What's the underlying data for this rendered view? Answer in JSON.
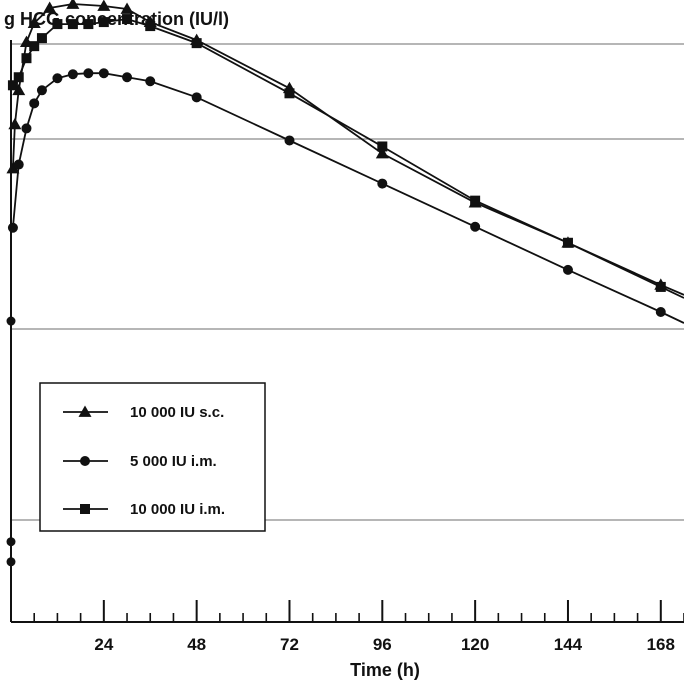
{
  "chart_data": {
    "type": "line",
    "title": "g HCG concentration (IU/l)",
    "xlabel": "Time (h)",
    "ylabel": "",
    "x_ticks": [
      "24",
      "48",
      "72",
      "96",
      "120",
      "144",
      "168"
    ],
    "xlim": [
      0,
      174
    ],
    "ylim": [
      0,
      620
    ],
    "y_scale": "log",
    "gridlines": "horizontal",
    "legend_position": "lower-left",
    "series": [
      {
        "name": "10 000 IU s.c.",
        "marker": "triangle",
        "points": [
          [
            0.5,
            452
          ],
          [
            1,
            496
          ],
          [
            2,
            530
          ],
          [
            4,
            578
          ],
          [
            6,
            597
          ],
          [
            10,
            612
          ],
          [
            16,
            616
          ],
          [
            24,
            614
          ],
          [
            30,
            611
          ],
          [
            36,
            598
          ],
          [
            48,
            580
          ],
          [
            72,
            532
          ],
          [
            96,
            467
          ],
          [
            120,
            418
          ],
          [
            144,
            378
          ],
          [
            168,
            336
          ],
          [
            174,
            326
          ]
        ]
      },
      {
        "name": "5 000 IU i.m.",
        "marker": "circle",
        "points": [
          [
            0.5,
            393
          ],
          [
            2,
            456
          ],
          [
            4,
            492
          ],
          [
            6,
            517
          ],
          [
            8,
            530
          ],
          [
            12,
            542
          ],
          [
            16,
            546
          ],
          [
            20,
            547
          ],
          [
            24,
            547
          ],
          [
            30,
            543
          ],
          [
            36,
            539
          ],
          [
            48,
            523
          ],
          [
            72,
            480
          ],
          [
            96,
            437
          ],
          [
            120,
            394
          ],
          [
            144,
            351
          ],
          [
            168,
            309
          ],
          [
            174,
            298
          ]
        ]
      },
      {
        "name": "10 000 IU i.m.",
        "marker": "square",
        "points": [
          [
            0.5,
            535
          ],
          [
            2,
            543
          ],
          [
            4,
            562
          ],
          [
            6,
            574
          ],
          [
            8,
            582
          ],
          [
            12,
            596
          ],
          [
            16,
            596
          ],
          [
            20,
            596
          ],
          [
            24,
            598
          ],
          [
            30,
            601
          ],
          [
            36,
            594
          ],
          [
            48,
            577
          ],
          [
            72,
            527
          ],
          [
            96,
            474
          ],
          [
            120,
            420
          ],
          [
            144,
            378
          ],
          [
            168,
            334
          ],
          [
            174,
            323
          ]
        ]
      }
    ],
    "left_stub_markers": [
      {
        "marker": "circle",
        "y": 300
      },
      {
        "marker": "circle",
        "y": 80
      },
      {
        "marker": "circle",
        "y": 60
      }
    ]
  }
}
